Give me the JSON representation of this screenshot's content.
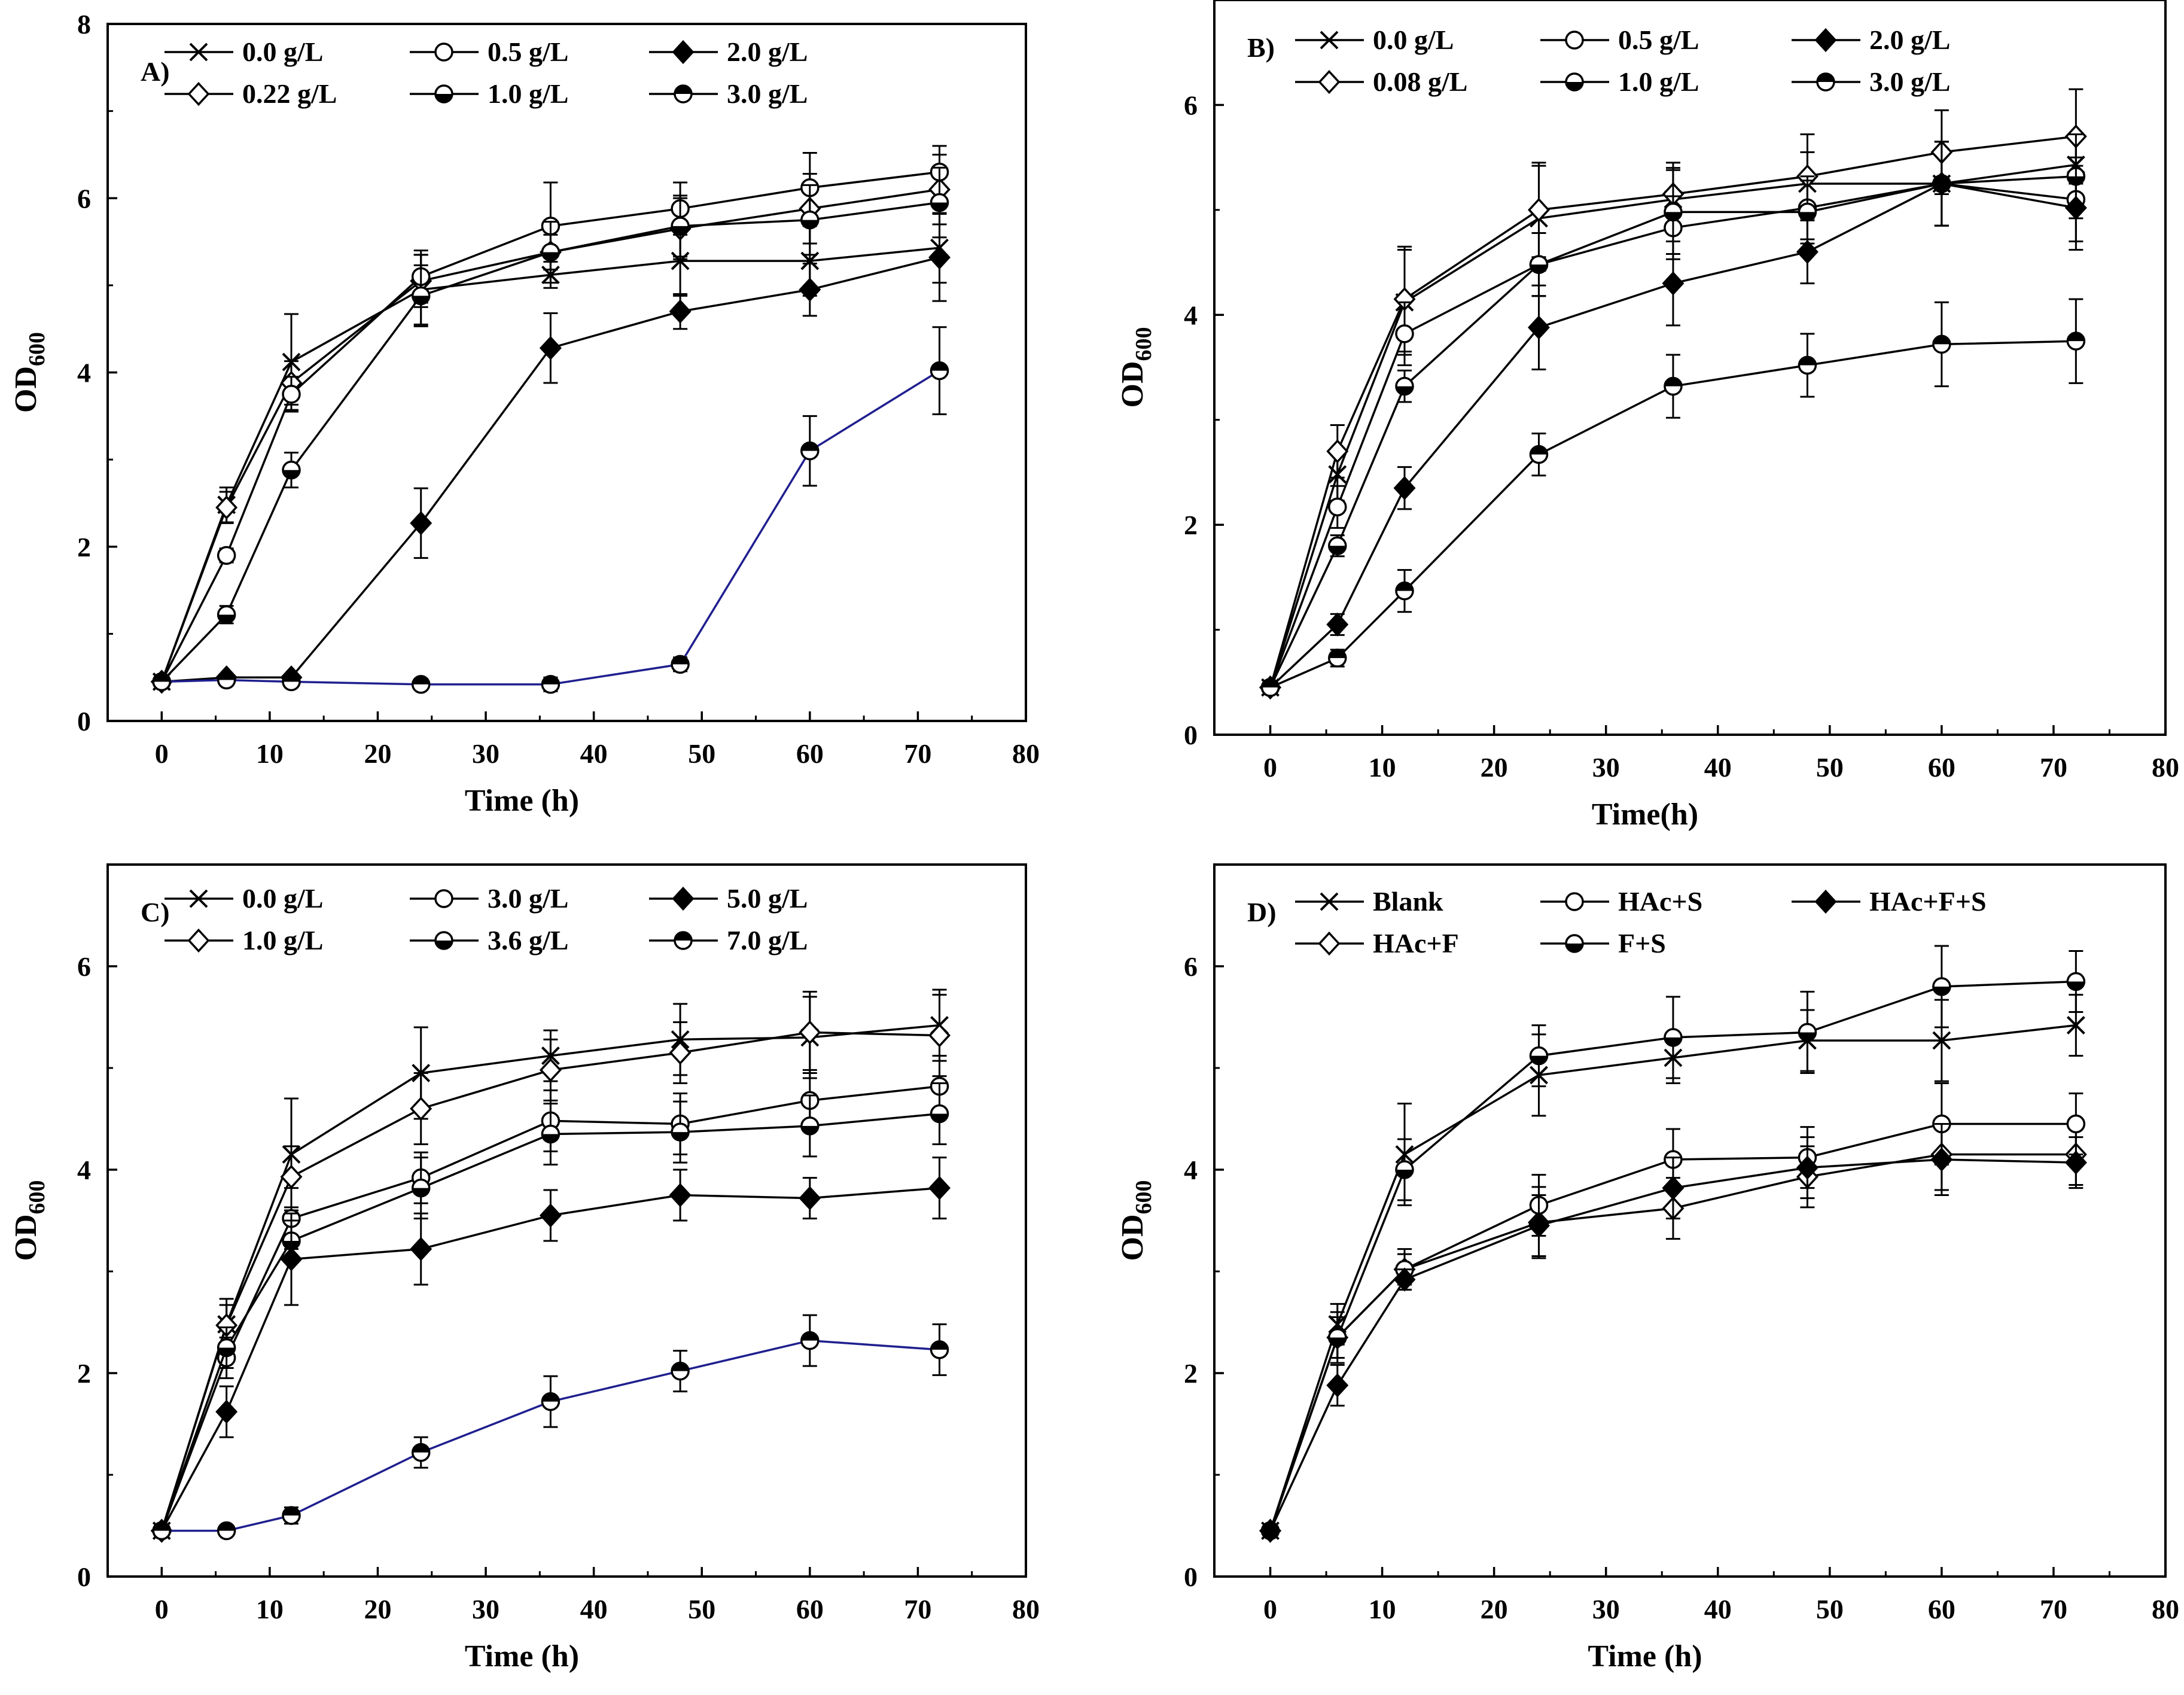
{
  "colors": {
    "axis": "#000000",
    "default_line": "#000000",
    "highlight_line": "#1f1f8f"
  },
  "chart_data": [
    {
      "type": "line",
      "panel_label": "A)",
      "xlabel": "Time (h)",
      "ylabel": {
        "main": "OD",
        "sub": "600"
      },
      "xlim": [
        -5,
        80
      ],
      "ylim": [
        0,
        8
      ],
      "xticks": [
        0,
        10,
        20,
        30,
        40,
        50,
        60,
        70,
        80
      ],
      "yticks": [
        0,
        2,
        4,
        6,
        8
      ],
      "x": [
        0,
        6,
        12,
        24,
        36,
        48,
        60,
        72
      ],
      "series": [
        {
          "name": "0.0  g/L",
          "marker": "x",
          "values": [
            0.45,
            2.48,
            4.12,
            4.95,
            5.12,
            5.28,
            5.28,
            5.43
          ],
          "errors": [
            0.05,
            0.2,
            0.55,
            0.4,
            0.15,
            0.4,
            0.4,
            0.4
          ]
        },
        {
          "name": "0.22 g/L",
          "marker": "diamond-open",
          "values": [
            0.45,
            2.45,
            3.88,
            5.05,
            5.38,
            5.65,
            5.88,
            6.1
          ],
          "errors": [
            0.05,
            0.18,
            0.25,
            0.3,
            0.2,
            0.35,
            0.4,
            0.4
          ]
        },
        {
          "name": "0.5 g/L",
          "marker": "circle-open",
          "values": [
            0.45,
            1.9,
            3.75,
            5.1,
            5.68,
            5.88,
            6.12,
            6.3
          ],
          "errors": [
            0.05,
            0.08,
            0.2,
            0.3,
            0.5,
            0.3,
            0.4,
            0.3
          ]
        },
        {
          "name": "1.0 g/L",
          "marker": "circle-half-bottom",
          "values": [
            0.45,
            1.22,
            2.88,
            4.88,
            5.38,
            5.68,
            5.75,
            5.95
          ],
          "errors": [
            0.05,
            0.1,
            0.2,
            0.35,
            0.35,
            0.35,
            0.4,
            0.4
          ]
        },
        {
          "name": "2.0 g/L",
          "marker": "diamond-filled",
          "values": [
            0.45,
            0.5,
            0.5,
            2.27,
            4.28,
            4.7,
            4.95,
            5.32
          ],
          "errors": [
            0.05,
            0.05,
            0.05,
            0.4,
            0.4,
            0.2,
            0.3,
            0.5
          ]
        },
        {
          "name": "3.0 g/L",
          "marker": "circle-half-top",
          "line_color": "#1f1f8f",
          "values": [
            0.45,
            0.47,
            0.45,
            0.42,
            0.42,
            0.65,
            3.1,
            4.02
          ],
          "errors": [
            0.05,
            0.05,
            0.05,
            0.05,
            0.08,
            0.08,
            0.4,
            0.5
          ]
        }
      ]
    },
    {
      "type": "line",
      "panel_label": "B)",
      "xlabel": "Time(h)",
      "ylabel": {
        "main": "OD",
        "sub": "600"
      },
      "xlim": [
        -5,
        80
      ],
      "ylim": [
        0,
        7
      ],
      "xticks": [
        0,
        10,
        20,
        30,
        40,
        50,
        60,
        70,
        80
      ],
      "yticks": [
        0,
        2,
        4,
        6
      ],
      "x": [
        0,
        6,
        12,
        24,
        36,
        48,
        60,
        72
      ],
      "series": [
        {
          "name": "0.0 g/L",
          "marker": "x",
          "values": [
            0.45,
            2.48,
            4.12,
            4.92,
            5.1,
            5.25,
            5.25,
            5.43
          ],
          "errors": [
            0.05,
            0.25,
            0.5,
            0.5,
            0.3,
            0.3,
            0.4,
            0.3
          ]
        },
        {
          "name": "0.08 g/L",
          "marker": "diamond-open",
          "values": [
            0.45,
            2.7,
            4.15,
            5.0,
            5.15,
            5.32,
            5.55,
            5.7
          ],
          "errors": [
            0.05,
            0.25,
            0.5,
            0.45,
            0.3,
            0.4,
            0.4,
            0.45
          ]
        },
        {
          "name": "0.5 g/L",
          "marker": "circle-open",
          "values": [
            0.45,
            2.17,
            3.82,
            4.48,
            4.83,
            5.02,
            5.25,
            5.1
          ],
          "errors": [
            0.05,
            0.2,
            0.3,
            0.3,
            0.3,
            0.3,
            0.4,
            0.4
          ]
        },
        {
          "name": "1.0 g/L",
          "marker": "circle-half-bottom",
          "values": [
            0.45,
            1.8,
            3.32,
            4.48,
            4.98,
            4.98,
            5.25,
            5.32
          ],
          "errors": [
            0.05,
            0.1,
            0.15,
            0.3,
            0.4,
            0.3,
            0.4,
            0.4
          ]
        },
        {
          "name": "2.0 g/L",
          "marker": "diamond-filled",
          "values": [
            0.45,
            1.05,
            2.35,
            3.88,
            4.3,
            4.6,
            5.25,
            5.02
          ],
          "errors": [
            0.05,
            0.1,
            0.2,
            0.4,
            0.4,
            0.3,
            0.4,
            0.4
          ]
        },
        {
          "name": "3.0 g/L",
          "marker": "circle-half-top",
          "values": [
            0.45,
            0.73,
            1.37,
            2.67,
            3.32,
            3.52,
            3.72,
            3.75
          ],
          "errors": [
            0.05,
            0.08,
            0.2,
            0.2,
            0.3,
            0.3,
            0.4,
            0.4
          ]
        }
      ]
    },
    {
      "type": "line",
      "panel_label": "C)",
      "xlabel": "Time (h)",
      "ylabel": {
        "main": "OD",
        "sub": "600"
      },
      "xlim": [
        -5,
        80
      ],
      "ylim": [
        0,
        7
      ],
      "xticks": [
        0,
        10,
        20,
        30,
        40,
        50,
        60,
        70,
        80
      ],
      "yticks": [
        0,
        2,
        4,
        6
      ],
      "x": [
        0,
        6,
        12,
        24,
        36,
        48,
        60,
        72
      ],
      "series": [
        {
          "name": "0.0  g/L",
          "marker": "x",
          "values": [
            0.45,
            2.48,
            4.15,
            4.95,
            5.12,
            5.28,
            5.3,
            5.42
          ],
          "errors": [
            0.05,
            0.25,
            0.55,
            0.45,
            0.25,
            0.35,
            0.4,
            0.35
          ]
        },
        {
          "name": "1.0 g/L",
          "marker": "diamond-open",
          "values": [
            0.45,
            2.47,
            3.93,
            4.6,
            4.98,
            5.15,
            5.35,
            5.32
          ],
          "errors": [
            0.05,
            0.2,
            0.3,
            0.35,
            0.3,
            0.3,
            0.4,
            0.4
          ]
        },
        {
          "name": "3.0 g/L",
          "marker": "circle-open",
          "values": [
            0.45,
            2.15,
            3.52,
            3.92,
            4.48,
            4.45,
            4.68,
            4.82
          ],
          "errors": [
            0.05,
            0.2,
            0.3,
            0.25,
            0.3,
            0.3,
            0.3,
            0.3
          ]
        },
        {
          "name": "3.6 g/L",
          "marker": "circle-half-bottom",
          "values": [
            0.45,
            2.25,
            3.3,
            3.82,
            4.35,
            4.37,
            4.43,
            4.55
          ],
          "errors": [
            0.05,
            0.2,
            0.2,
            0.3,
            0.3,
            0.3,
            0.3,
            0.3
          ]
        },
        {
          "name": "5.0 g/L",
          "marker": "diamond-filled",
          "values": [
            0.45,
            1.62,
            3.12,
            3.22,
            3.55,
            3.75,
            3.72,
            3.82
          ],
          "errors": [
            0.05,
            0.25,
            0.45,
            0.35,
            0.25,
            0.25,
            0.2,
            0.3
          ]
        },
        {
          "name": "7.0 g/L",
          "marker": "circle-half-top",
          "line_color": "#1f1f8f",
          "values": [
            0.45,
            0.45,
            0.6,
            1.22,
            1.72,
            2.02,
            2.32,
            2.23
          ],
          "errors": [
            0.05,
            0.05,
            0.08,
            0.15,
            0.25,
            0.2,
            0.25,
            0.25
          ]
        }
      ]
    },
    {
      "type": "line",
      "panel_label": "D)",
      "xlabel": "Time (h)",
      "ylabel": {
        "main": "OD",
        "sub": "600"
      },
      "xlim": [
        -5,
        80
      ],
      "ylim": [
        0,
        7
      ],
      "xticks": [
        0,
        10,
        20,
        30,
        40,
        50,
        60,
        70,
        80
      ],
      "yticks": [
        0,
        2,
        4,
        6
      ],
      "x": [
        0,
        6,
        12,
        24,
        36,
        48,
        60,
        72
      ],
      "series": [
        {
          "name": "Blank",
          "marker": "x",
          "values": [
            0.45,
            2.48,
            4.15,
            4.93,
            5.1,
            5.27,
            5.27,
            5.42
          ],
          "errors": [
            0.05,
            0.2,
            0.5,
            0.4,
            0.25,
            0.3,
            0.4,
            0.3
          ]
        },
        {
          "name": "HAc+F",
          "marker": "diamond-open",
          "values": [
            0.45,
            2.35,
            3.02,
            3.48,
            3.62,
            3.93,
            4.15,
            4.15
          ],
          "errors": [
            0.05,
            0.25,
            0.2,
            0.35,
            0.3,
            0.3,
            0.35,
            0.3
          ]
        },
        {
          "name": "HAc+S",
          "marker": "circle-open",
          "values": [
            0.45,
            2.35,
            3.02,
            3.65,
            4.1,
            4.12,
            4.45,
            4.45
          ],
          "errors": [
            0.05,
            0.2,
            0.15,
            0.3,
            0.3,
            0.3,
            0.4,
            0.3
          ]
        },
        {
          "name": "F+S",
          "marker": "circle-half-bottom",
          "values": [
            0.45,
            2.35,
            4.0,
            5.12,
            5.3,
            5.35,
            5.8,
            5.85
          ],
          "errors": [
            0.05,
            0.2,
            0.3,
            0.3,
            0.4,
            0.4,
            0.4,
            0.3
          ]
        },
        {
          "name": "HAc+F+S",
          "marker": "diamond-filled",
          "values": [
            0.45,
            1.88,
            2.92,
            3.45,
            3.82,
            4.02,
            4.1,
            4.07
          ],
          "errors": [
            0.05,
            0.2,
            0.1,
            0.3,
            0.3,
            0.3,
            0.35,
            0.25
          ]
        }
      ]
    }
  ]
}
